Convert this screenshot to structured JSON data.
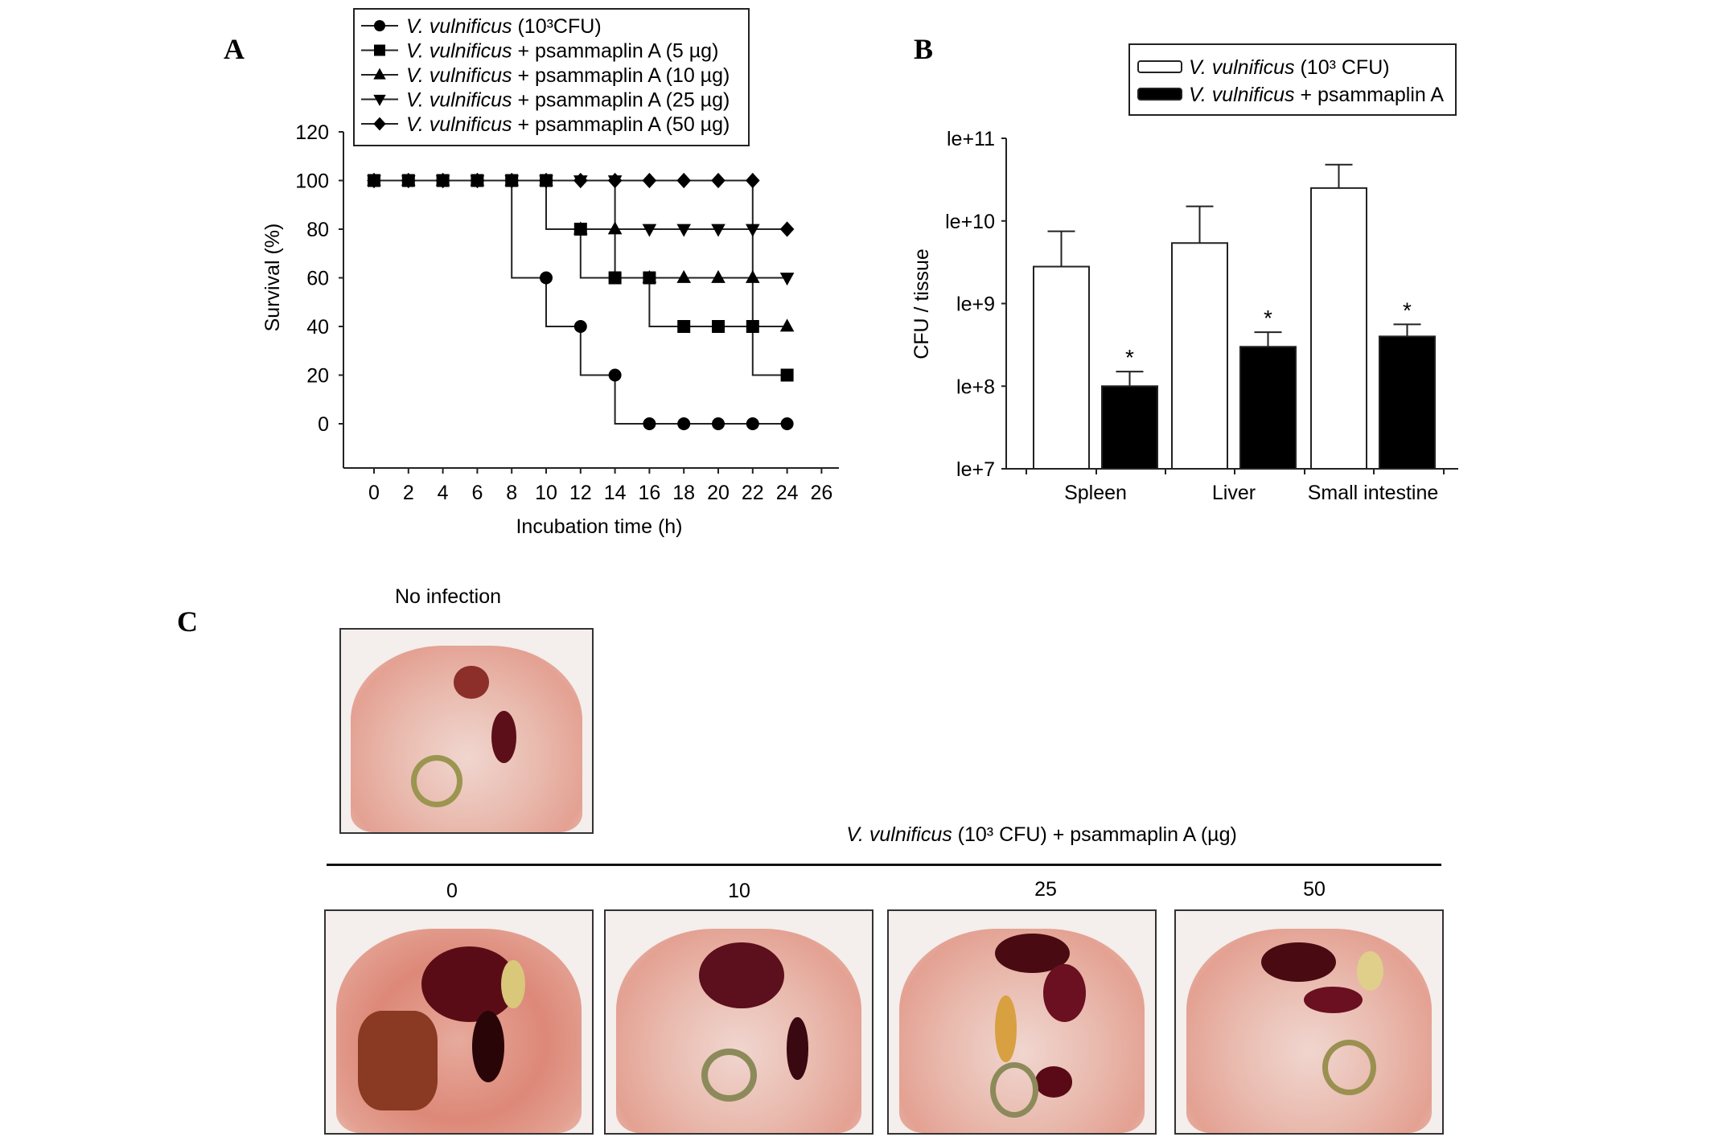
{
  "panels": {
    "a": "A",
    "b": "B",
    "c": "C"
  },
  "chart_data": [
    {
      "type": "line",
      "title": "",
      "xlabel": "Incubation time (h)",
      "ylabel": "Survival (%)",
      "xlim": [
        0,
        26
      ],
      "ylim": [
        -20,
        120
      ],
      "xticks": [
        0,
        2,
        4,
        6,
        8,
        10,
        12,
        14,
        16,
        18,
        20,
        22,
        24,
        26
      ],
      "yticks": [
        0,
        20,
        40,
        60,
        80,
        100,
        120
      ],
      "x": [
        0,
        2,
        4,
        6,
        8,
        10,
        12,
        14,
        16,
        18,
        20,
        22,
        24
      ],
      "legend_position": "top",
      "step": true,
      "series": [
        {
          "name_italic": "V. vulnificus",
          "name_rest": " (10³CFU)",
          "marker": "circle",
          "values": [
            100,
            100,
            100,
            100,
            100,
            60,
            40,
            20,
            0,
            0,
            0,
            0,
            0
          ]
        },
        {
          "name_italic": "V. vulnificus",
          "name_rest": " + psammaplin A (5 µg)",
          "marker": "square",
          "values": [
            100,
            100,
            100,
            100,
            100,
            100,
            80,
            60,
            60,
            40,
            40,
            40,
            20
          ]
        },
        {
          "name_italic": "V. vulnificus",
          "name_rest": " + psammaplin A (10 µg)",
          "marker": "triangle-up",
          "values": [
            100,
            100,
            100,
            100,
            100,
            100,
            80,
            80,
            60,
            60,
            60,
            60,
            40
          ]
        },
        {
          "name_italic": "V. vulnificus",
          "name_rest": " + psammaplin A (25 µg)",
          "marker": "triangle-down",
          "values": [
            100,
            100,
            100,
            100,
            100,
            100,
            100,
            100,
            80,
            80,
            80,
            80,
            60
          ]
        },
        {
          "name_italic": "V. vulnificus",
          "name_rest": " + psammaplin A (50 µg)",
          "marker": "diamond",
          "values": [
            100,
            100,
            100,
            100,
            100,
            100,
            100,
            100,
            100,
            100,
            100,
            100,
            80
          ]
        }
      ]
    },
    {
      "type": "bar",
      "title": "",
      "xlabel": "",
      "ylabel": "CFU / tissue",
      "yscale": "log",
      "ylim": [
        10000000.0,
        100000000000.0
      ],
      "ytick_values": [
        10000000.0,
        100000000.0,
        1000000000.0,
        10000000000.0,
        100000000000.0
      ],
      "ytick_labels": [
        "le+7",
        "le+8",
        "le+9",
        "le+10",
        "le+11"
      ],
      "categories": [
        "Spleen",
        "Liver",
        "Small intestine"
      ],
      "legend_position": "top-right",
      "series": [
        {
          "name_italic": "V. vulnificus",
          "name_rest": " (10³ CFU)",
          "color": "#ffffff",
          "values": [
            2800000000.0,
            5400000000.0,
            25000000000.0
          ],
          "error_upper": [
            7500000000.0,
            15000000000.0,
            48000000000.0
          ],
          "significance": [
            "",
            "",
            ""
          ]
        },
        {
          "name_italic": "V. vulnificus",
          "name_rest": " + psammaplin A",
          "color": "#000000",
          "values": [
            100000000.0,
            300000000.0,
            400000000.0
          ],
          "error_upper": [
            150000000.0,
            450000000.0,
            560000000.0
          ],
          "significance": [
            "*",
            "*",
            "*"
          ]
        }
      ]
    }
  ],
  "panel_c": {
    "control_label": "No infection",
    "group_caption_italic": "V. vulnificus",
    "group_caption_rest": " (10³ CFU) + psammaplin A (µg)",
    "doses": [
      "0",
      "10",
      "25",
      "50"
    ]
  }
}
